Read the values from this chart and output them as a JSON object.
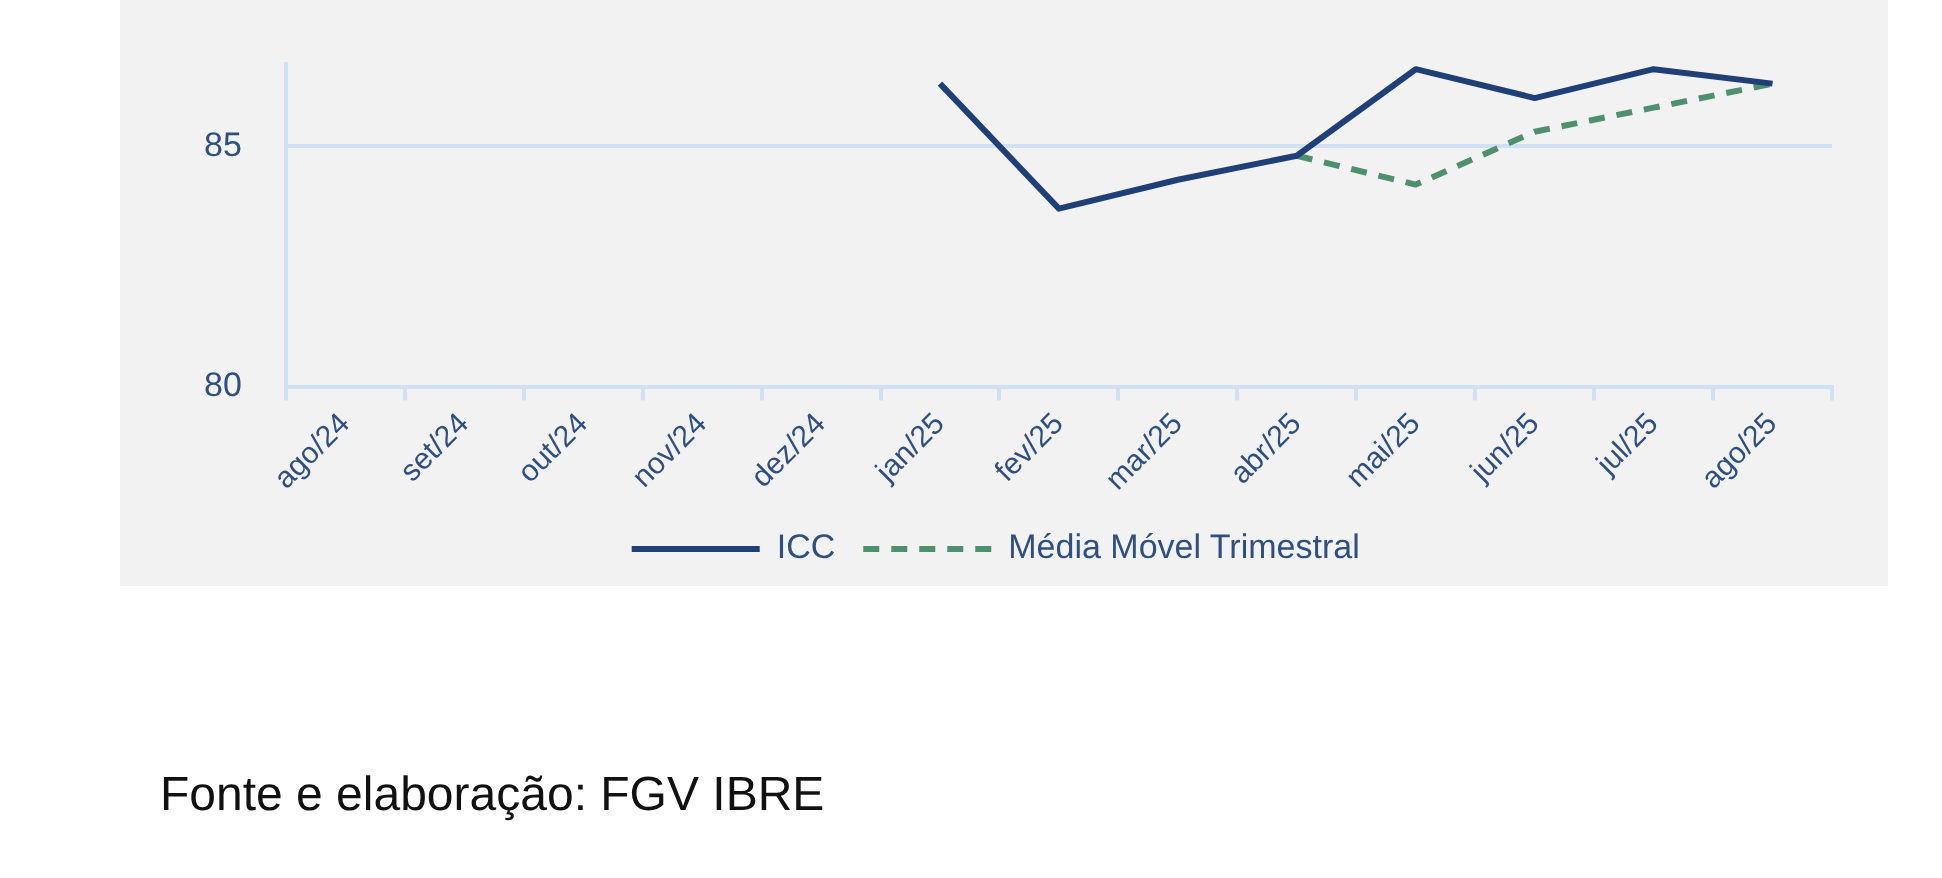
{
  "chart_data": {
    "type": "line",
    "categories": [
      "ago/24",
      "set/24",
      "out/24",
      "nov/24",
      "dez/24",
      "jan/25",
      "fev/25",
      "mar/25",
      "abr/25",
      "mai/25",
      "jun/25",
      "jul/25",
      "ago/25"
    ],
    "series": [
      {
        "name": "ICC",
        "color": "#1f3f77",
        "line_style": "solid",
        "values": [
          null,
          null,
          null,
          null,
          null,
          86.3,
          83.7,
          84.3,
          84.8,
          86.6,
          86.0,
          86.6,
          86.3
        ]
      },
      {
        "name": "Média Móvel Trimestral",
        "color": "#4e8f6e",
        "line_style": "dashed",
        "values": [
          null,
          null,
          null,
          null,
          null,
          null,
          null,
          null,
          84.8,
          84.2,
          85.3,
          85.8,
          86.3
        ]
      }
    ],
    "ylim": [
      80,
      86.7
    ],
    "yticks": [
      80,
      85
    ],
    "grid": "y",
    "legend": "bottom",
    "marker": "none",
    "annotations": [
      "Fonte e elaboração: FGV IBRE"
    ]
  }
}
